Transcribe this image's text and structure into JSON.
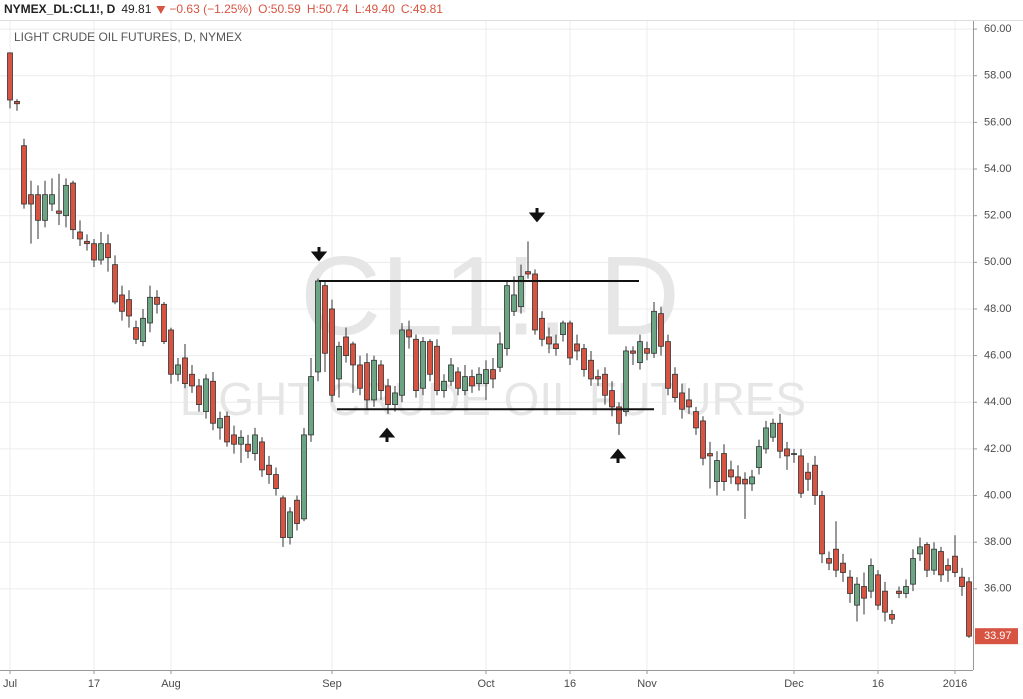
{
  "chart_data": {
    "type": "candlestick",
    "header": {
      "symbol": "NYMEX_DL:CL1!, D",
      "last": 49.81,
      "change": {
        "value": -0.63,
        "label": "−0.63 (−1.25%)"
      },
      "ohlc": [
        {
          "value": 50.59,
          "label": "O:50.59"
        },
        {
          "value": 50.74,
          "label": "H:50.74"
        },
        {
          "value": 49.4,
          "label": "L:49.40"
        },
        {
          "value": 49.81,
          "label": "C:49.81"
        }
      ]
    },
    "title": "LIGHT CRUDE OIL FUTURES, D, NYMEX",
    "watermark_symbol": "CL1!, D",
    "watermark_name": "LIGHT CRUDE OIL FUTURES",
    "up_color": "#6ba583",
    "down_color": "#d75442",
    "grid": true,
    "categories": [
      "Jul",
      null,
      null,
      null,
      null,
      null,
      null,
      null,
      null,
      null,
      null,
      null,
      "17",
      null,
      null,
      null,
      null,
      null,
      null,
      null,
      null,
      null,
      null,
      "Aug",
      null,
      null,
      null,
      null,
      null,
      null,
      null,
      null,
      null,
      null,
      null,
      null,
      null,
      null,
      null,
      null,
      null,
      null,
      null,
      null,
      null,
      null,
      "Sep",
      null,
      null,
      null,
      null,
      null,
      null,
      null,
      null,
      null,
      null,
      null,
      null,
      null,
      null,
      null,
      null,
      null,
      null,
      null,
      null,
      null,
      "Oct",
      null,
      null,
      null,
      null,
      null,
      null,
      null,
      null,
      null,
      null,
      null,
      "16",
      null,
      null,
      null,
      null,
      null,
      null,
      null,
      null,
      null,
      null,
      "Nov",
      null,
      null,
      null,
      null,
      null,
      null,
      null,
      null,
      null,
      null,
      null,
      null,
      null,
      null,
      null,
      null,
      null,
      null,
      null,
      null,
      "Dec",
      null,
      null,
      null,
      null,
      null,
      null,
      null,
      null,
      null,
      null,
      null,
      "16",
      null,
      null,
      null,
      null,
      null,
      null,
      null,
      null,
      null,
      null,
      "2016",
      null,
      null
    ],
    "open": [
      58.98,
      56.9,
      55.0,
      52.9,
      52.9,
      51.8,
      52.5,
      52.2,
      52.0,
      53.4,
      51.3,
      50.9,
      50.8,
      50.1,
      50.8,
      49.9,
      48.6,
      48.4,
      47.2,
      46.6,
      47.4,
      48.5,
      48.2,
      47.1,
      45.2,
      45.9,
      45.2,
      44.7,
      43.6,
      44.9,
      42.9,
      43.4,
      42.6,
      42.2,
      42.2,
      41.8,
      42.3,
      41.3,
      40.9,
      39.9,
      38.2,
      39.8,
      39.0,
      42.6,
      45.3,
      49.0,
      48.0,
      45.0,
      46.8,
      46.5,
      45.6,
      45.7,
      44.1,
      45.6,
      44.7,
      43.9,
      44.3,
      47.1,
      46.7,
      44.6,
      46.6,
      46.4,
      44.5,
      44.9,
      45.3,
      44.5,
      45.1,
      44.8,
      44.8,
      45.4,
      45.5,
      46.3,
      47.9,
      48.1,
      49.6,
      49.5,
      47.6,
      46.8,
      46.5,
      46.9,
      47.4,
      46.5,
      46.3,
      45.8,
      45.1,
      45.2,
      44.5,
      43.8,
      43.6,
      46.2,
      45.7,
      46.3,
      46.1,
      47.8,
      46.6,
      45.2,
      44.4,
      44.1,
      43.6,
      43.2,
      41.8,
      40.6,
      41.8,
      41.1,
      40.8,
      40.7,
      40.5,
      41.2,
      42.0,
      42.5,
      43.1,
      42.0,
      41.8,
      41.7,
      41.0,
      41.3,
      40.0,
      37.3,
      37.7,
      37.1,
      36.5,
      35.3,
      36.1,
      35.9,
      36.6,
      35.9,
      34.9,
      35.9,
      35.8,
      36.2,
      37.5,
      37.9,
      36.8,
      37.6,
      37.0,
      37.4,
      36.5,
      36.3
    ],
    "high": [
      59.0,
      57.0,
      55.3,
      53.5,
      53.3,
      53.5,
      53.6,
      53.8,
      53.6,
      53.5,
      51.8,
      51.2,
      51.0,
      51.3,
      51.2,
      50.3,
      49.0,
      48.8,
      47.5,
      48.0,
      49.0,
      48.8,
      48.3,
      47.2,
      45.9,
      46.5,
      45.6,
      45.0,
      45.2,
      45.3,
      43.6,
      43.6,
      43.0,
      42.8,
      42.6,
      42.9,
      42.5,
      41.7,
      41.2,
      40.0,
      39.5,
      40.0,
      42.9,
      45.9,
      49.3,
      49.2,
      48.4,
      46.6,
      47.2,
      46.6,
      46.0,
      46.1,
      46.0,
      45.8,
      45.0,
      44.7,
      47.4,
      47.5,
      46.9,
      46.8,
      46.7,
      46.7,
      45.2,
      45.9,
      45.5,
      45.6,
      45.4,
      45.5,
      45.8,
      45.9,
      47.0,
      49.2,
      49.4,
      49.9,
      50.9,
      49.7,
      47.9,
      47.2,
      46.9,
      47.5,
      47.5,
      46.9,
      46.5,
      46.2,
      45.4,
      45.5,
      44.9,
      44.0,
      46.4,
      46.4,
      46.9,
      46.6,
      48.3,
      48.1,
      46.9,
      45.5,
      44.8,
      44.6,
      43.8,
      43.4,
      42.3,
      41.9,
      42.2,
      41.5,
      41.3,
      41.0,
      41.1,
      42.4,
      43.2,
      43.3,
      43.5,
      42.3,
      42.0,
      42.0,
      41.4,
      41.7,
      40.2,
      37.6,
      38.9,
      37.5,
      36.8,
      36.5,
      36.7,
      37.3,
      36.8,
      36.3,
      35.1,
      36.1,
      36.4,
      37.7,
      38.2,
      38.0,
      38.0,
      37.8,
      37.3,
      38.3,
      36.9,
      36.5
    ],
    "low": [
      56.6,
      56.5,
      52.3,
      50.8,
      51.0,
      51.5,
      52.2,
      51.6,
      51.5,
      51.0,
      50.7,
      50.5,
      49.8,
      49.9,
      49.6,
      48.2,
      47.5,
      47.2,
      46.5,
      46.4,
      47.0,
      47.8,
      46.5,
      44.8,
      44.9,
      44.6,
      44.4,
      43.6,
      43.3,
      42.8,
      42.4,
      42.1,
      41.8,
      41.4,
      41.6,
      41.5,
      40.8,
      40.5,
      40.0,
      37.8,
      37.9,
      38.5,
      38.9,
      42.3,
      44.9,
      45.3,
      44.0,
      44.2,
      45.7,
      44.4,
      44.3,
      43.7,
      43.8,
      44.1,
      43.5,
      43.6,
      44.0,
      46.3,
      44.2,
      44.3,
      44.9,
      44.3,
      44.2,
      44.7,
      44.3,
      44.3,
      44.4,
      44.5,
      44.1,
      44.6,
      45.3,
      46.0,
      47.7,
      47.8,
      49.3,
      46.9,
      46.4,
      46.1,
      46.0,
      46.6,
      45.6,
      45.8,
      45.1,
      44.7,
      44.7,
      43.9,
      43.4,
      42.6,
      43.4,
      45.6,
      45.4,
      45.8,
      45.9,
      46.0,
      44.3,
      44.0,
      43.3,
      43.5,
      42.6,
      41.3,
      40.3,
      40.0,
      40.2,
      40.5,
      40.2,
      39.0,
      40.2,
      40.9,
      41.8,
      42.3,
      41.6,
      41.1,
      41.4,
      39.9,
      40.2,
      39.6,
      37.1,
      36.8,
      36.5,
      36.3,
      35.4,
      34.6,
      34.9,
      35.6,
      35.1,
      34.6,
      34.5,
      35.6,
      35.6,
      35.9,
      37.2,
      36.5,
      36.6,
      36.3,
      36.3,
      36.5,
      35.7,
      33.9
    ],
    "close": [
      56.96,
      56.8,
      52.5,
      52.5,
      51.8,
      52.9,
      52.9,
      52.1,
      53.3,
      51.4,
      51.0,
      50.8,
      50.1,
      50.8,
      50.2,
      48.3,
      47.9,
      47.7,
      46.7,
      47.6,
      48.5,
      48.2,
      46.6,
      45.2,
      45.6,
      44.8,
      44.7,
      43.9,
      45.0,
      43.1,
      43.3,
      42.3,
      42.2,
      42.5,
      41.9,
      42.6,
      41.1,
      40.9,
      40.3,
      38.2,
      39.3,
      38.8,
      42.6,
      45.1,
      49.2,
      46.1,
      44.3,
      46.4,
      46.0,
      45.6,
      44.6,
      44.1,
      45.8,
      44.5,
      43.9,
      44.4,
      47.1,
      46.8,
      44.5,
      46.6,
      45.2,
      44.5,
      44.9,
      45.6,
      44.6,
      45.1,
      44.7,
      45.2,
      45.4,
      45.0,
      46.5,
      49.0,
      48.6,
      49.4,
      49.5,
      47.1,
      46.7,
      46.5,
      46.3,
      47.4,
      45.9,
      46.2,
      45.4,
      45.0,
      45.0,
      44.3,
      43.8,
      43.1,
      46.2,
      46.1,
      46.6,
      46.1,
      47.9,
      46.4,
      44.6,
      44.2,
      43.7,
      43.8,
      42.9,
      41.6,
      41.7,
      41.5,
      40.6,
      40.8,
      40.5,
      40.5,
      40.8,
      42.1,
      42.9,
      43.1,
      41.9,
      41.7,
      41.8,
      40.1,
      40.7,
      40.0,
      37.5,
      37.1,
      36.8,
      36.7,
      35.8,
      36.2,
      35.6,
      37.0,
      35.3,
      35.0,
      34.7,
      35.8,
      36.1,
      37.3,
      37.8,
      36.8,
      37.7,
      36.6,
      36.8,
      36.7,
      36.1,
      33.97
    ],
    "levels": [
      49.2,
      43.7
    ],
    "ylim": [
      32.52,
      60.39
    ],
    "yticks": [
      {
        "value": 36,
        "label": "36.00"
      },
      {
        "value": 38,
        "label": "38.00"
      },
      {
        "value": 40,
        "label": "40.00"
      },
      {
        "value": 42,
        "label": "42.00"
      },
      {
        "value": 44,
        "label": "44.00"
      },
      {
        "value": 46,
        "label": "46.00"
      },
      {
        "value": 48,
        "label": "48.00"
      },
      {
        "value": 50,
        "label": "50.00"
      },
      {
        "value": 52,
        "label": "52.00"
      },
      {
        "value": 54,
        "label": "54.00"
      },
      {
        "value": 56,
        "label": "56.00"
      },
      {
        "value": 58,
        "label": "58.00"
      },
      {
        "value": 60,
        "label": "60.00"
      }
    ]
  }
}
